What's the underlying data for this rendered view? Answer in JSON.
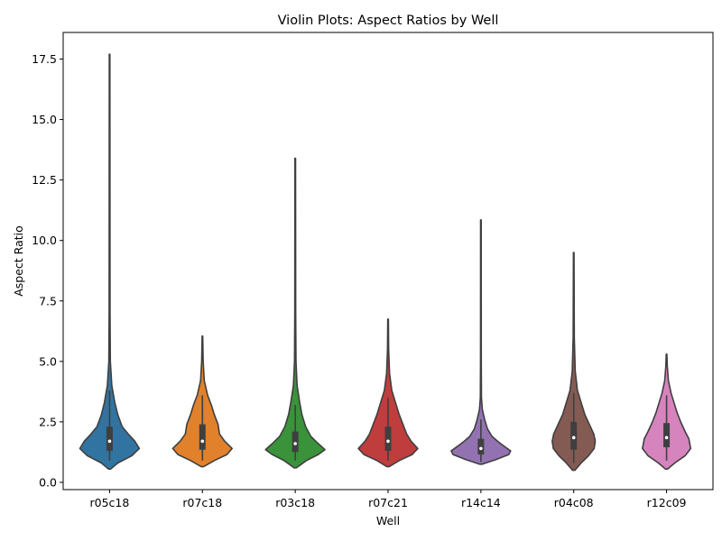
{
  "chart_data": {
    "type": "violin",
    "title": "Violin Plots: Aspect Ratios by Well",
    "xlabel": "Well",
    "ylabel": "Aspect Ratio",
    "ylim": [
      -0.3,
      18.6
    ],
    "yticks": [
      0.0,
      2.5,
      5.0,
      7.5,
      10.0,
      12.5,
      15.0,
      17.5
    ],
    "ytick_labels": [
      "0.0",
      "2.5",
      "5.0",
      "7.5",
      "10.0",
      "12.5",
      "15.0",
      "17.5"
    ],
    "grid": false,
    "categories": [
      "r05c18",
      "r07c18",
      "r03c18",
      "r07c21",
      "r14c14",
      "r04c08",
      "r12c09"
    ],
    "colors": [
      "#3274a1",
      "#e1812c",
      "#3a923a",
      "#c03d3e",
      "#9372b2",
      "#845b53",
      "#d684bd"
    ],
    "violins": [
      {
        "min": 0.55,
        "max": 17.7,
        "q1": 1.3,
        "median": 1.7,
        "q3": 2.3,
        "whisker_low": 0.9,
        "whisker_high": 3.8,
        "density": [
          [
            0.55,
            0.03
          ],
          [
            0.8,
            0.22
          ],
          [
            1.1,
            0.6
          ],
          [
            1.4,
            0.8
          ],
          [
            1.7,
            0.68
          ],
          [
            2.0,
            0.5
          ],
          [
            2.3,
            0.34
          ],
          [
            2.8,
            0.22
          ],
          [
            3.3,
            0.14
          ],
          [
            4.0,
            0.06
          ],
          [
            5.0,
            0.02
          ],
          [
            7.0,
            0.012
          ],
          [
            17.7,
            0.008
          ]
        ]
      },
      {
        "min": 0.65,
        "max": 6.05,
        "q1": 1.35,
        "median": 1.7,
        "q3": 2.4,
        "whisker_low": 0.9,
        "whisker_high": 3.6,
        "density": [
          [
            0.65,
            0.03
          ],
          [
            0.9,
            0.32
          ],
          [
            1.15,
            0.66
          ],
          [
            1.4,
            0.8
          ],
          [
            1.7,
            0.6
          ],
          [
            2.0,
            0.46
          ],
          [
            2.4,
            0.42
          ],
          [
            2.8,
            0.32
          ],
          [
            3.2,
            0.24
          ],
          [
            3.6,
            0.14
          ],
          [
            4.2,
            0.05
          ],
          [
            5.0,
            0.02
          ],
          [
            6.05,
            0.008
          ]
        ]
      },
      {
        "min": 0.6,
        "max": 13.4,
        "q1": 1.25,
        "median": 1.6,
        "q3": 2.1,
        "whisker_low": 0.9,
        "whisker_high": 3.2,
        "density": [
          [
            0.6,
            0.03
          ],
          [
            0.9,
            0.3
          ],
          [
            1.15,
            0.62
          ],
          [
            1.35,
            0.8
          ],
          [
            1.6,
            0.62
          ],
          [
            1.9,
            0.42
          ],
          [
            2.3,
            0.28
          ],
          [
            2.8,
            0.18
          ],
          [
            3.3,
            0.12
          ],
          [
            4.0,
            0.05
          ],
          [
            5.0,
            0.02
          ],
          [
            7.0,
            0.012
          ],
          [
            13.4,
            0.008
          ]
        ]
      },
      {
        "min": 0.65,
        "max": 6.75,
        "q1": 1.3,
        "median": 1.7,
        "q3": 2.3,
        "whisker_low": 0.9,
        "whisker_high": 3.5,
        "density": [
          [
            0.65,
            0.03
          ],
          [
            0.9,
            0.3
          ],
          [
            1.15,
            0.65
          ],
          [
            1.4,
            0.8
          ],
          [
            1.7,
            0.62
          ],
          [
            2.0,
            0.5
          ],
          [
            2.4,
            0.4
          ],
          [
            2.8,
            0.3
          ],
          [
            3.3,
            0.2
          ],
          [
            3.8,
            0.1
          ],
          [
            4.5,
            0.04
          ],
          [
            5.5,
            0.015
          ],
          [
            6.75,
            0.008
          ]
        ]
      },
      {
        "min": 0.75,
        "max": 10.85,
        "q1": 1.15,
        "median": 1.4,
        "q3": 1.8,
        "whisker_low": 0.85,
        "whisker_high": 2.6,
        "density": [
          [
            0.75,
            0.03
          ],
          [
            0.95,
            0.42
          ],
          [
            1.15,
            0.75
          ],
          [
            1.3,
            0.8
          ],
          [
            1.5,
            0.62
          ],
          [
            1.7,
            0.45
          ],
          [
            1.9,
            0.3
          ],
          [
            2.2,
            0.18
          ],
          [
            2.6,
            0.1
          ],
          [
            3.0,
            0.04
          ],
          [
            3.5,
            0.015
          ],
          [
            5.0,
            0.01
          ],
          [
            10.85,
            0.008
          ]
        ]
      },
      {
        "min": 0.5,
        "max": 9.5,
        "q1": 1.35,
        "median": 1.85,
        "q3": 2.5,
        "whisker_low": 0.8,
        "whisker_high": 3.7,
        "density": [
          [
            0.5,
            0.03
          ],
          [
            0.8,
            0.2
          ],
          [
            1.1,
            0.4
          ],
          [
            1.4,
            0.55
          ],
          [
            1.7,
            0.58
          ],
          [
            2.0,
            0.54
          ],
          [
            2.4,
            0.42
          ],
          [
            2.8,
            0.3
          ],
          [
            3.3,
            0.2
          ],
          [
            3.8,
            0.1
          ],
          [
            4.6,
            0.04
          ],
          [
            6.0,
            0.015
          ],
          [
            9.5,
            0.008
          ]
        ]
      },
      {
        "min": 0.55,
        "max": 5.3,
        "q1": 1.45,
        "median": 1.85,
        "q3": 2.45,
        "whisker_low": 0.9,
        "whisker_high": 3.6,
        "density": [
          [
            0.55,
            0.03
          ],
          [
            0.8,
            0.22
          ],
          [
            1.1,
            0.5
          ],
          [
            1.4,
            0.65
          ],
          [
            1.8,
            0.6
          ],
          [
            2.1,
            0.5
          ],
          [
            2.5,
            0.38
          ],
          [
            2.9,
            0.28
          ],
          [
            3.3,
            0.2
          ],
          [
            3.7,
            0.12
          ],
          [
            4.2,
            0.05
          ],
          [
            4.8,
            0.02
          ],
          [
            5.3,
            0.008
          ]
        ]
      }
    ]
  }
}
